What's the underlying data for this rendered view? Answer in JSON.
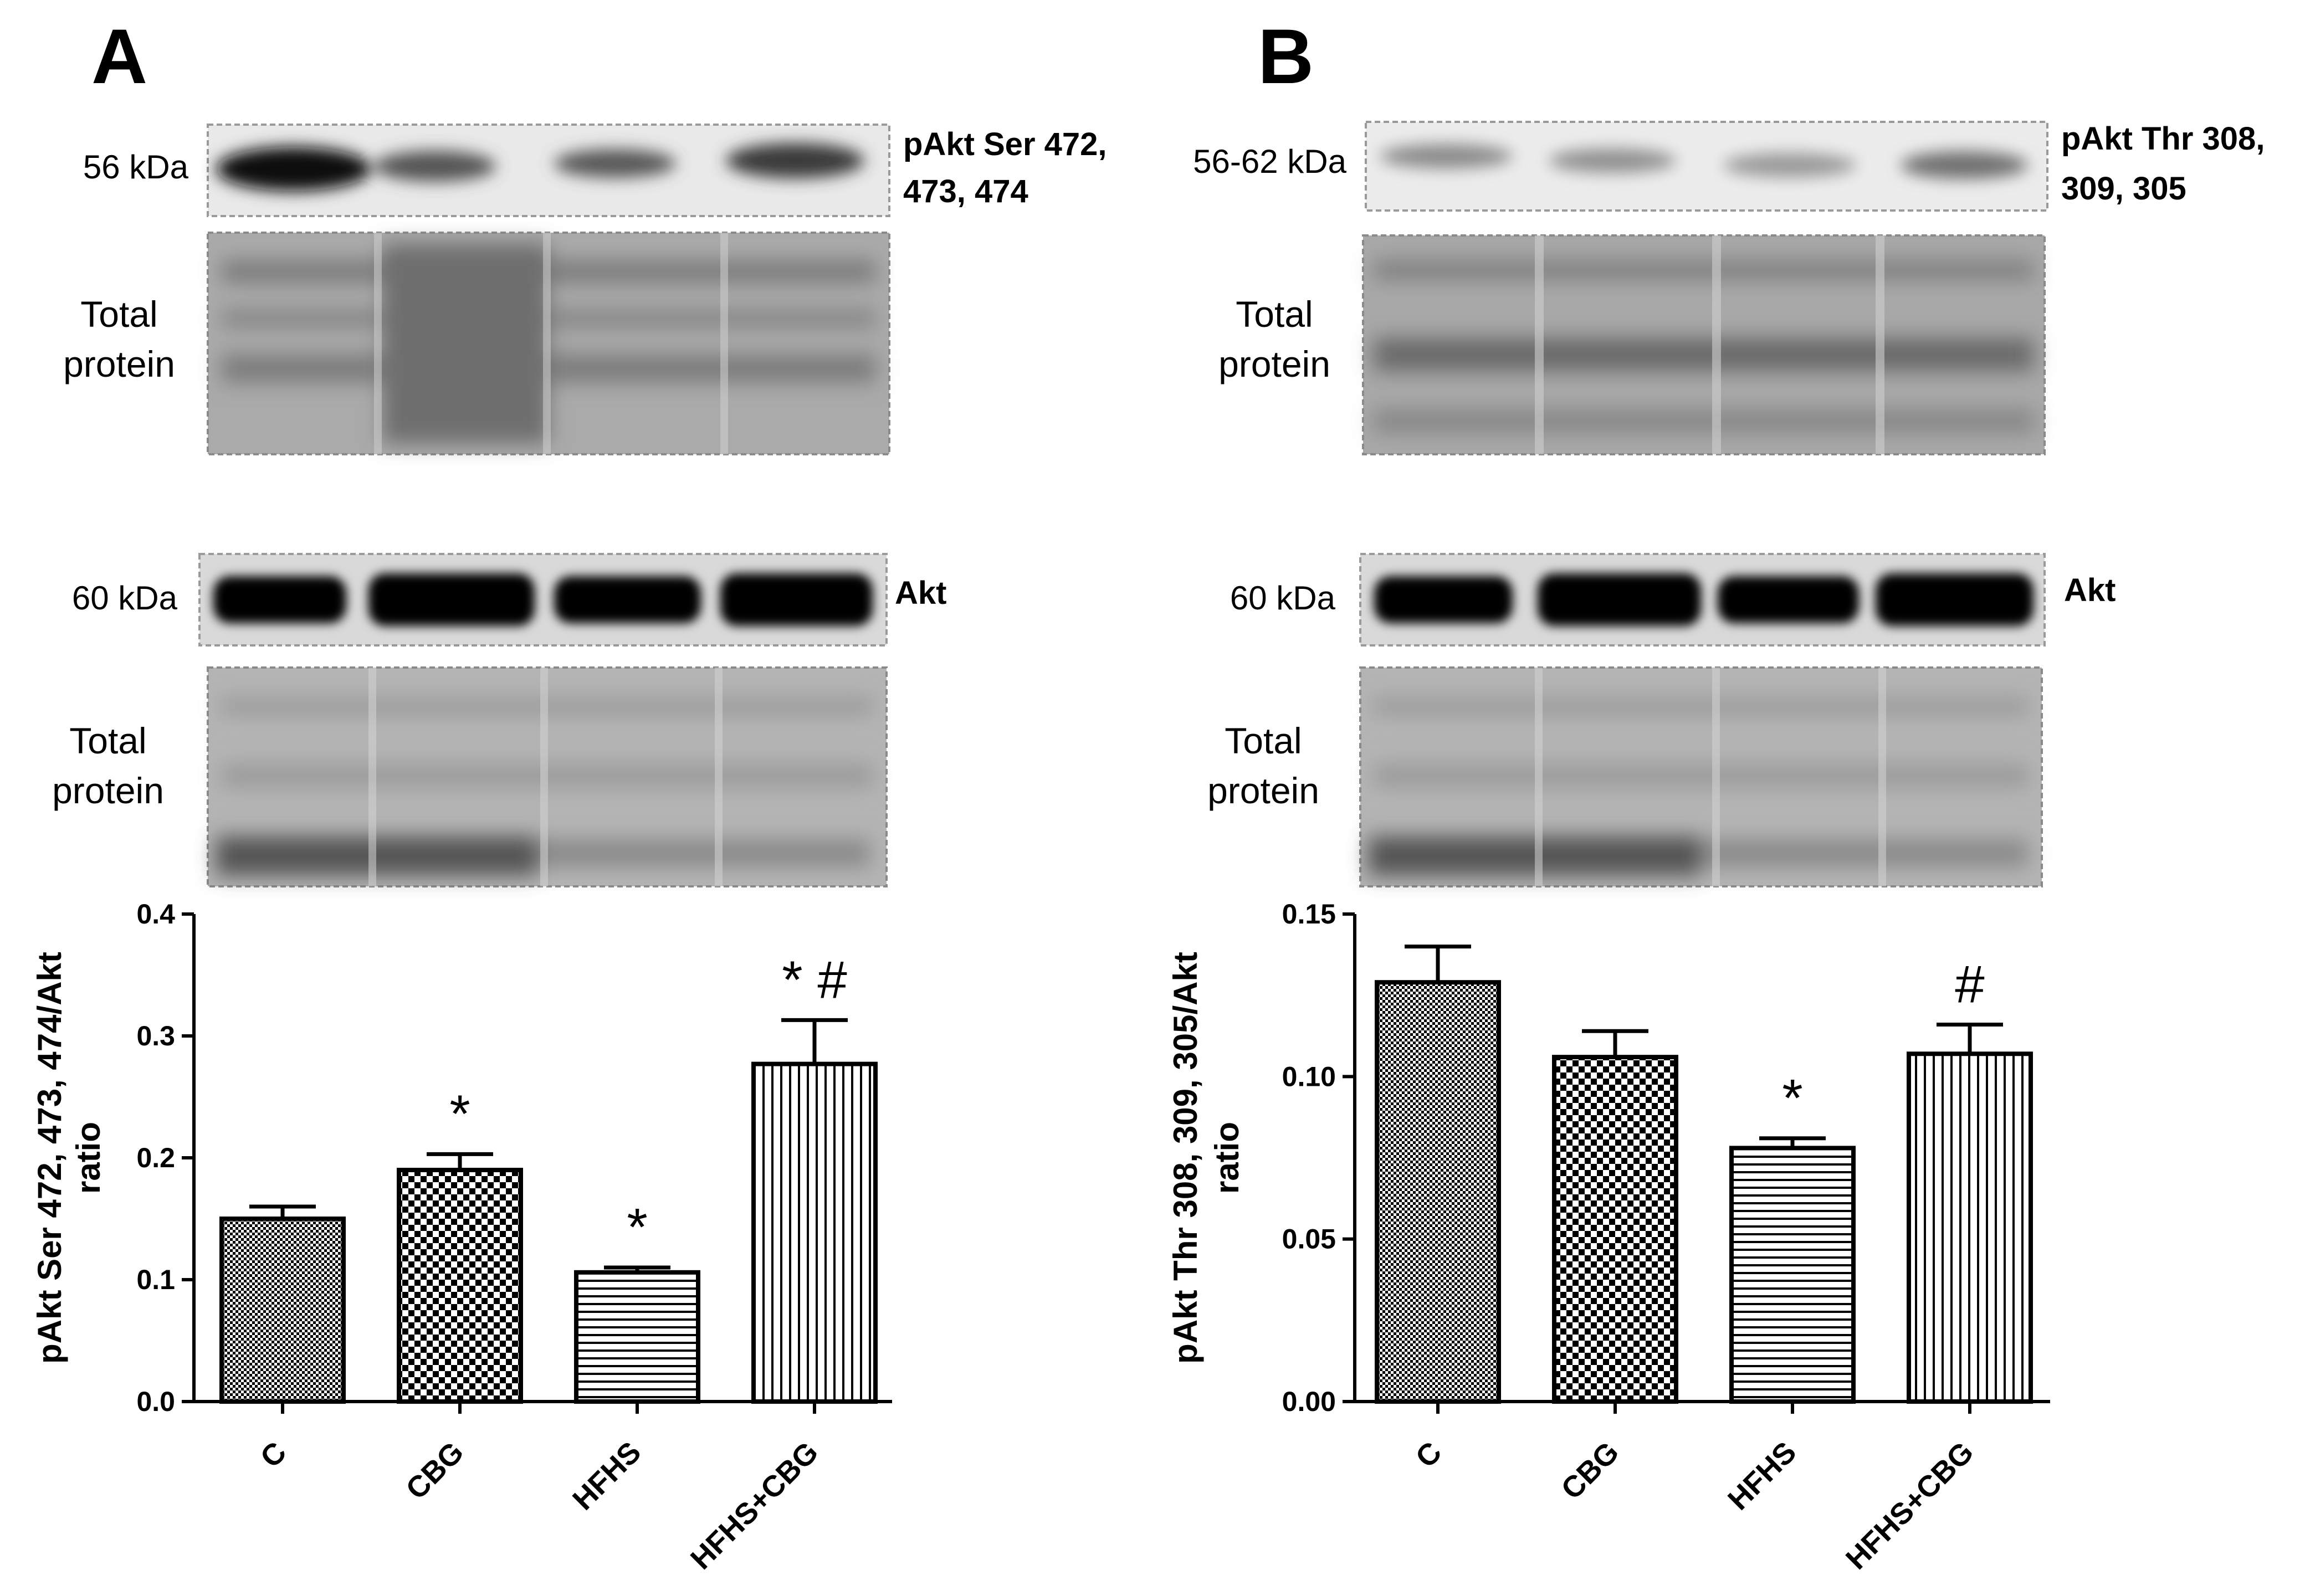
{
  "panels": [
    {
      "letter": "A",
      "phospho_blot": {
        "mw_label": "56 kDa",
        "band_label_line1": "pAkt Ser 472,",
        "band_label_line2": "473, 474"
      },
      "total_blot": {
        "mw_label": "60 kDa",
        "band_label": "Akt"
      },
      "total_protein_label_line1": "Total",
      "total_protein_label_line2": "protein"
    },
    {
      "letter": "B",
      "phospho_blot": {
        "mw_label": "56-62 kDa",
        "band_label_line1": "pAkt Thr 308,",
        "band_label_line2": "309, 305"
      },
      "total_blot": {
        "mw_label": "60 kDa",
        "band_label": "Akt"
      },
      "total_protein_label_line1": "Total",
      "total_protein_label_line2": "protein"
    }
  ],
  "chart_data": [
    {
      "type": "bar",
      "title": "",
      "categories": [
        "C",
        "CBG",
        "HFHS",
        "HFHS+CBG"
      ],
      "series": [
        {
          "values": [
            0.15,
            0.19,
            0.106,
            0.277
          ],
          "errors": [
            0.01,
            0.013,
            0.004,
            0.036
          ]
        }
      ],
      "patterns": [
        "fine-check",
        "checker",
        "horizontal-lines",
        "vertical-lines"
      ],
      "significance": [
        "",
        "*",
        "*",
        "* #"
      ],
      "ylabel_line1": "pAkt Ser 472, 473, 474/Akt",
      "ylabel_line2": "ratio",
      "ylim": [
        0,
        0.4
      ],
      "yticks": [
        "0.0",
        "0.1",
        "0.2",
        "0.3",
        "0.4"
      ],
      "grid": false,
      "legend": "none"
    },
    {
      "type": "bar",
      "title": "",
      "categories": [
        "C",
        "CBG",
        "HFHS",
        "HFHS+CBG"
      ],
      "series": [
        {
          "values": [
            0.129,
            0.106,
            0.078,
            0.107
          ],
          "errors": [
            0.011,
            0.008,
            0.003,
            0.009
          ]
        }
      ],
      "patterns": [
        "fine-check",
        "checker",
        "horizontal-lines",
        "vertical-lines"
      ],
      "significance": [
        "",
        "",
        "*",
        "#"
      ],
      "ylabel_line1": "pAkt Thr 308, 309, 305/Akt",
      "ylabel_line2": "ratio",
      "ylim": [
        0,
        0.15
      ],
      "yticks": [
        "0.00",
        "0.05",
        "0.10",
        "0.15"
      ],
      "grid": false,
      "legend": "none"
    }
  ]
}
